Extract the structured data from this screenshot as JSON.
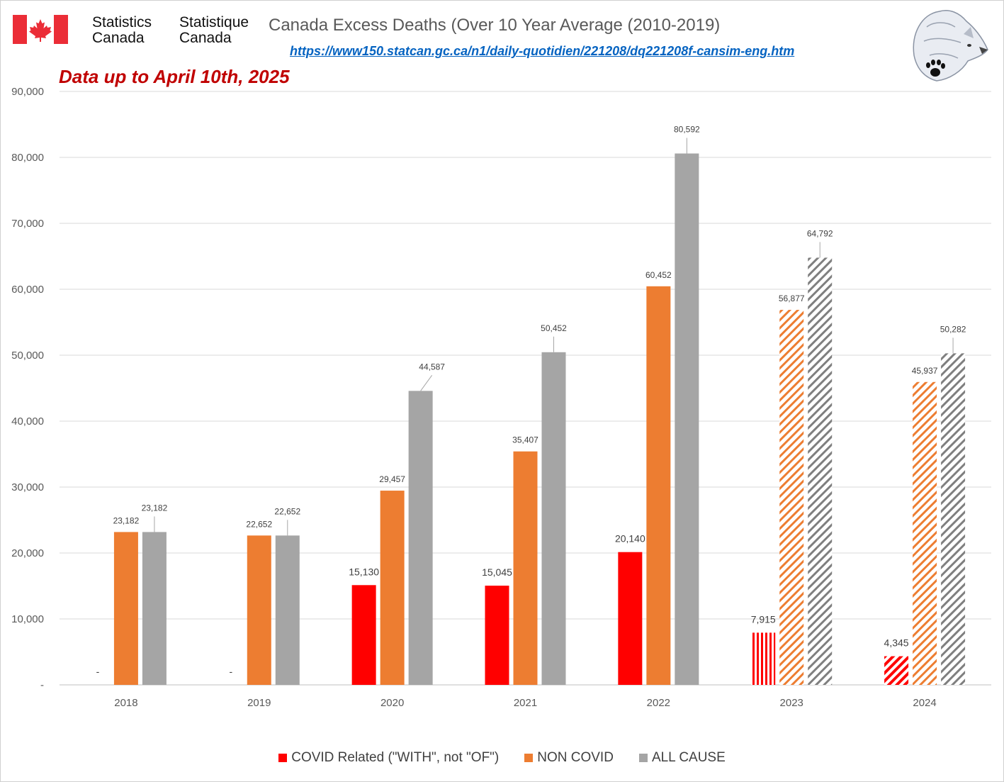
{
  "header": {
    "org_en_line1": "Statistics",
    "org_en_line2": "Canada",
    "org_fr_line1": "Statistique",
    "org_fr_line2": "Canada",
    "title": "Canada Excess Deaths (Over 10 Year Average (2010-2019)",
    "url": "https://www150.statcan.gc.ca/n1/daily-quotidien/221208/dq221208f-cansim-eng.htm",
    "note": "Data up to April 10th, 2025"
  },
  "icons": {
    "flag": "canada-flag-icon",
    "logo": "wolf-paw-logo-icon"
  },
  "colors": {
    "covid": "#ff0000",
    "non_covid": "#ed7d31",
    "all_cause": "#a5a5a5",
    "note": "#c00000",
    "link": "#0563c1"
  },
  "chart_data": {
    "type": "bar",
    "title": "Canada Excess Deaths (Over 10 Year Average (2010-2019)",
    "categories": [
      "2018",
      "2019",
      "2020",
      "2021",
      "2022",
      "2023",
      "2024"
    ],
    "series": [
      {
        "name": "COVID Related (\"WITH\", not \"OF\")",
        "color": "#ff0000",
        "values": [
          0,
          0,
          15130,
          15045,
          20140,
          7915,
          4345
        ],
        "labels": [
          "-",
          "-",
          "15,130",
          "15,045",
          "20,140",
          "7,915",
          "4,345"
        ]
      },
      {
        "name": "NON COVID",
        "color": "#ed7d31",
        "values": [
          23182,
          22652,
          29457,
          35407,
          60452,
          56877,
          45937
        ],
        "labels": [
          "23,182",
          "22,652",
          "29,457",
          "35,407",
          "60,452",
          "56,877",
          "45,937"
        ]
      },
      {
        "name": "ALL CAUSE",
        "color": "#a5a5a5",
        "values": [
          23182,
          22652,
          44587,
          50452,
          80592,
          64792,
          50282
        ],
        "labels": [
          "23,182",
          "22,652",
          "44,587",
          "50,452",
          "80,592",
          "64,792",
          "50,282"
        ]
      }
    ],
    "hatched_categories": [
      "2023",
      "2024"
    ],
    "ylim": [
      0,
      90000
    ],
    "yticks": [
      0,
      10000,
      20000,
      30000,
      40000,
      50000,
      60000,
      70000,
      80000,
      90000
    ],
    "ytick_labels": [
      "-",
      "10,000",
      "20,000",
      "30,000",
      "40,000",
      "50,000",
      "60,000",
      "70,000",
      "80,000",
      "90,000"
    ],
    "grid": true,
    "legend_position": "bottom"
  }
}
